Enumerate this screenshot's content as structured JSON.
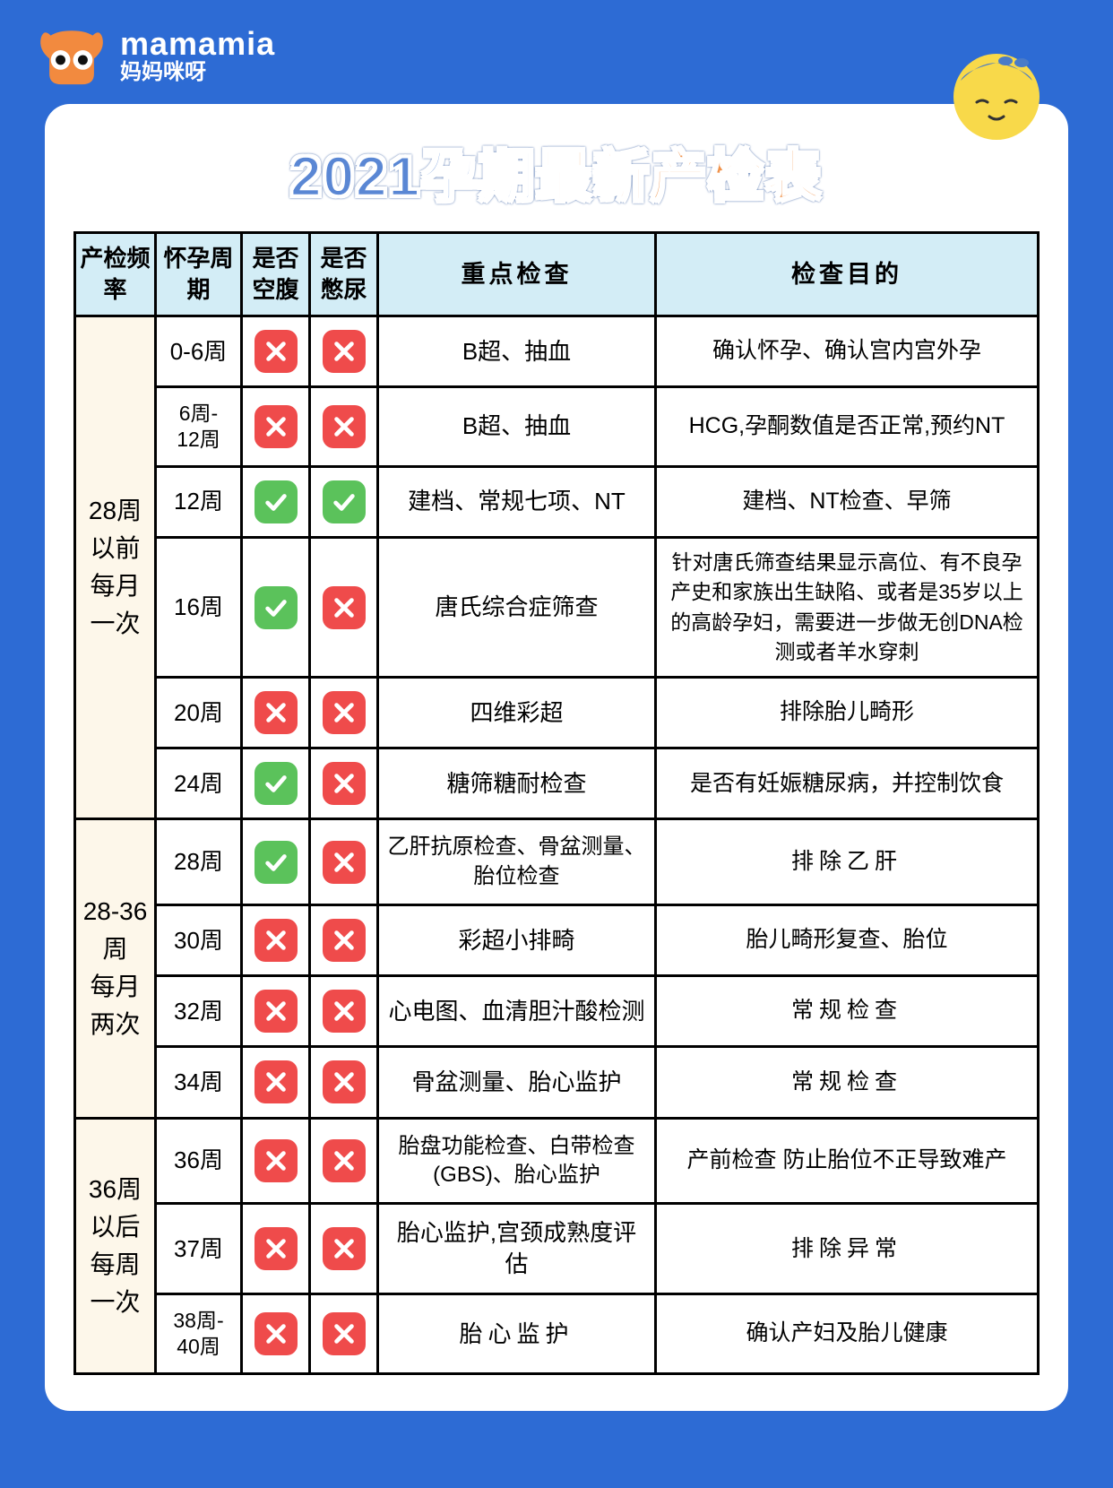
{
  "brand": {
    "en": "mamamia",
    "cn": "妈妈咪呀"
  },
  "title": {
    "part1": "2021孕期",
    "part2": "最新产检表"
  },
  "colors": {
    "page_bg": "#2d6bd4",
    "card_bg": "#ffffff",
    "header_bg": "#d3edf6",
    "freq_bg": "#fdf7ea",
    "title_blue": "#5a87d4",
    "title_orange": "#f0924a",
    "icon_yes": "#5bc25b",
    "icon_no": "#ef4b4b",
    "border": "#000000"
  },
  "columns": [
    "产检频率",
    "怀孕周期",
    "是否空腹",
    "是否憋尿",
    "重点检查",
    "检查目的"
  ],
  "groups": [
    {
      "freq": "28周以前每月一次",
      "rows": [
        {
          "week": "0-6周",
          "fast": false,
          "hold": false,
          "exam": "B超、抽血",
          "purpose": "确认怀孕、确认宫内宫外孕"
        },
        {
          "week": "6-12周",
          "fast": false,
          "hold": false,
          "exam": "B超、抽血",
          "purpose": "HCG,孕酮数值是否正常,预约NT"
        },
        {
          "week": "12周",
          "fast": true,
          "hold": true,
          "exam": "建档、常规七项、NT",
          "purpose": "建档、NT检查、早筛"
        },
        {
          "week": "16周",
          "fast": true,
          "hold": false,
          "exam": "唐氏综合症筛查",
          "purpose": "针对唐氏筛查结果显示高位、有不良孕产史和家族出生缺陷、或者是35岁以上的高龄孕妇，需要进一步做无创DNA检测或者羊水穿刺",
          "small": true
        },
        {
          "week": "20周",
          "fast": false,
          "hold": false,
          "exam": "四维彩超",
          "purpose": "排除胎儿畸形"
        },
        {
          "week": "24周",
          "fast": true,
          "hold": false,
          "exam": "糖筛糖耐检查",
          "purpose": "是否有妊娠糖尿病，并控制饮食"
        }
      ]
    },
    {
      "freq": "28-36周每月两次",
      "rows": [
        {
          "week": "28周",
          "fast": true,
          "hold": false,
          "exam": "乙肝抗原检查、骨盆测量、胎位检查",
          "purpose": "排除乙肝",
          "spaced": true
        },
        {
          "week": "30周",
          "fast": false,
          "hold": false,
          "exam": "彩超小排畸",
          "purpose": "胎儿畸形复查、胎位"
        },
        {
          "week": "32周",
          "fast": false,
          "hold": false,
          "exam": "心电图、血清胆汁酸检测",
          "purpose": "常规检查",
          "spaced": true
        },
        {
          "week": "34周",
          "fast": false,
          "hold": false,
          "exam": "骨盆测量、胎心监护",
          "purpose": "常规检查",
          "spaced": true
        }
      ]
    },
    {
      "freq": "36周以后每周一次",
      "rows": [
        {
          "week": "36周",
          "fast": false,
          "hold": false,
          "exam": "胎盘功能检查、白带检查(GBS)、胎心监护",
          "purpose": "产前检查 防止胎位不正导致难产"
        },
        {
          "week": "37周",
          "fast": false,
          "hold": false,
          "exam": "胎心监护,宫颈成熟度评估",
          "purpose": "排除异常",
          "spaced": true
        },
        {
          "week": "38周-40周",
          "fast": false,
          "hold": false,
          "exam": "胎心监护",
          "exam_spaced": true,
          "purpose": "确认产妇及胎儿健康"
        }
      ]
    }
  ]
}
